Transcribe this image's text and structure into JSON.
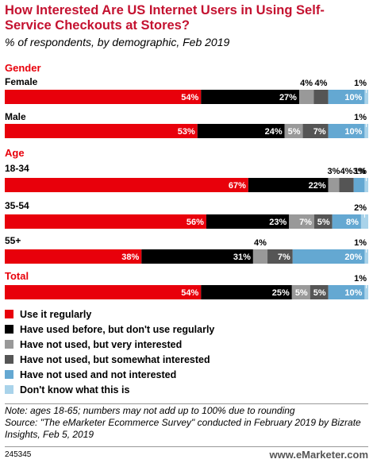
{
  "header": {
    "title": "How Interested Are US Internet Users in Using Self-Service Checkouts at Stores?",
    "subtitle": "% of respondents, by demographic, Feb 2019"
  },
  "colors": {
    "use_regularly": "#e8000b",
    "used_not_regularly": "#000000",
    "not_used_very_interested": "#999999",
    "not_used_somewhat_interested": "#555555",
    "not_used_not_interested": "#64a8d2",
    "dont_know": "#a9d3ea"
  },
  "chart_data": {
    "type": "bar",
    "orientation": "horizontal-stacked",
    "title": "How Interested Are US Internet Users in Using Self-Service Checkouts at Stores?",
    "subtitle": "% of respondents, by demographic, Feb 2019",
    "series": [
      {
        "name": "Use it regularly",
        "color": "#e8000b"
      },
      {
        "name": "Have used before, but don't use regularly",
        "color": "#000000"
      },
      {
        "name": "Have not used, but very interested",
        "color": "#999999"
      },
      {
        "name": "Have not used, but somewhat interested",
        "color": "#555555"
      },
      {
        "name": "Have not used and not interested",
        "color": "#64a8d2"
      },
      {
        "name": "Don't know what this is",
        "color": "#a9d3ea"
      }
    ],
    "sections": [
      {
        "label": "Gender",
        "groups": [
          {
            "label": "Female",
            "values": [
              54,
              27,
              4,
              4,
              10,
              1
            ]
          },
          {
            "label": "Male",
            "values": [
              53,
              24,
              5,
              7,
              10,
              1
            ]
          }
        ]
      },
      {
        "label": "Age",
        "groups": [
          {
            "label": "18-34",
            "values": [
              67,
              22,
              3,
              4,
              3,
              1
            ]
          },
          {
            "label": "35-54",
            "values": [
              56,
              23,
              7,
              5,
              8,
              2
            ]
          },
          {
            "label": "55+",
            "values": [
              38,
              31,
              4,
              7,
              20,
              1
            ]
          }
        ]
      },
      {
        "label": "Total",
        "groups": [
          {
            "label": "",
            "values": [
              54,
              25,
              5,
              5,
              10,
              1
            ]
          }
        ]
      }
    ],
    "xlim": [
      0,
      100
    ],
    "legend_position": "bottom"
  },
  "legend": [
    {
      "label": "Use it regularly",
      "color": "#e8000b"
    },
    {
      "label": "Have used before, but don't use regularly",
      "color": "#000000"
    },
    {
      "label": "Have not used, but very interested",
      "color": "#999999"
    },
    {
      "label": "Have not used, but somewhat interested",
      "color": "#555555"
    },
    {
      "label": "Have not used and not interested",
      "color": "#64a8d2"
    },
    {
      "label": "Don't know what this is",
      "color": "#a9d3ea"
    }
  ],
  "note": "Note: ages 18-65; numbers may not add up to 100% due to rounding",
  "source": "Source: \"The eMarketer Ecommerce Survey\" conducted in February 2019 by Bizrate Insights, Feb 5, 2019",
  "footer": {
    "chart_id": "245345",
    "brand_prefix": "www.",
    "brand_name": "eMarketer",
    "brand_suffix": ".com"
  }
}
